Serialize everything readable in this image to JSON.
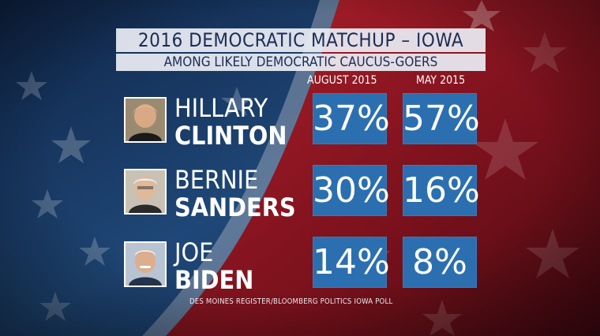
{
  "chart_data": {
    "type": "table",
    "title": "2016 DEMOCRATIC MATCHUP – IOWA",
    "subtitle": "AMONG LIKELY DEMOCRATIC CAUCUS-GOERS",
    "columns": [
      "AUGUST 2015",
      "MAY 2015"
    ],
    "rows": [
      {
        "first": "HILLARY",
        "last": "CLINTON",
        "values": [
          37,
          57
        ],
        "labels": [
          "37%",
          "57%"
        ]
      },
      {
        "first": "BERNIE",
        "last": "SANDERS",
        "values": [
          30,
          16
        ],
        "labels": [
          "30%",
          "16%"
        ]
      },
      {
        "first": "JOE",
        "last": "BIDEN",
        "values": [
          14,
          8
        ],
        "labels": [
          "14%",
          "8%"
        ]
      }
    ],
    "source": "DES MOINES REGISTER/BLOOMBERG POLITICS IOWA POLL"
  },
  "colors": {
    "value_box": "#2b6fb0",
    "title_text": "#1b2d55",
    "background_blue": "#1a3a66",
    "background_red": "#8e1622"
  }
}
